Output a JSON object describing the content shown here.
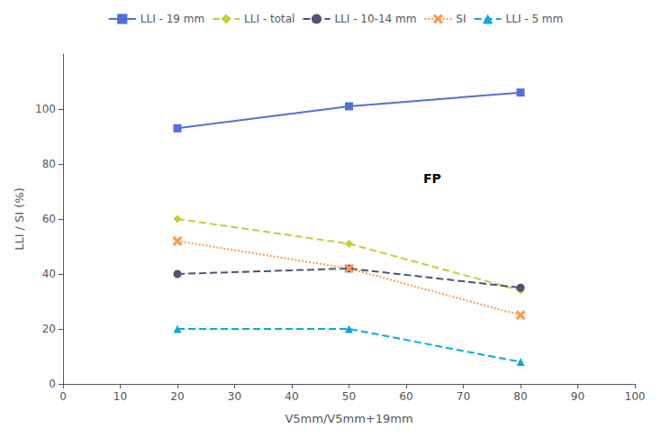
{
  "chart_data": {
    "type": "line",
    "x": [
      20,
      50,
      80
    ],
    "series": [
      {
        "name": "LLI - 19 mm",
        "values": [
          93,
          101,
          106
        ],
        "marker": "square",
        "line_style": "solid"
      },
      {
        "name": "LLI - total",
        "values": [
          60,
          51,
          34
        ],
        "marker": "diamond",
        "line_style": "dashed"
      },
      {
        "name": "LLI - 10-14 mm",
        "values": [
          40,
          42,
          35
        ],
        "marker": "circle",
        "line_style": "dashed"
      },
      {
        "name": "SI",
        "values": [
          52,
          42,
          25
        ],
        "marker": "x",
        "line_style": "dotted"
      },
      {
        "name": "LLI - 5 mm",
        "values": [
          20,
          20,
          8
        ],
        "marker": "triangle",
        "line_style": "dashed"
      }
    ],
    "xlabel": "V5mm/V5mm+19mm",
    "ylabel": "LLI / SI (%)",
    "xlim": [
      0,
      100
    ],
    "ylim": [
      0,
      120
    ],
    "xticks": [
      0,
      10,
      20,
      30,
      40,
      50,
      60,
      70,
      80,
      90,
      100
    ],
    "yticks": [
      0,
      20,
      40,
      60,
      80,
      100
    ],
    "annotations": [
      {
        "text": "FP",
        "x": 63,
        "y": 72
      }
    ],
    "grid": false,
    "legend": "top"
  }
}
